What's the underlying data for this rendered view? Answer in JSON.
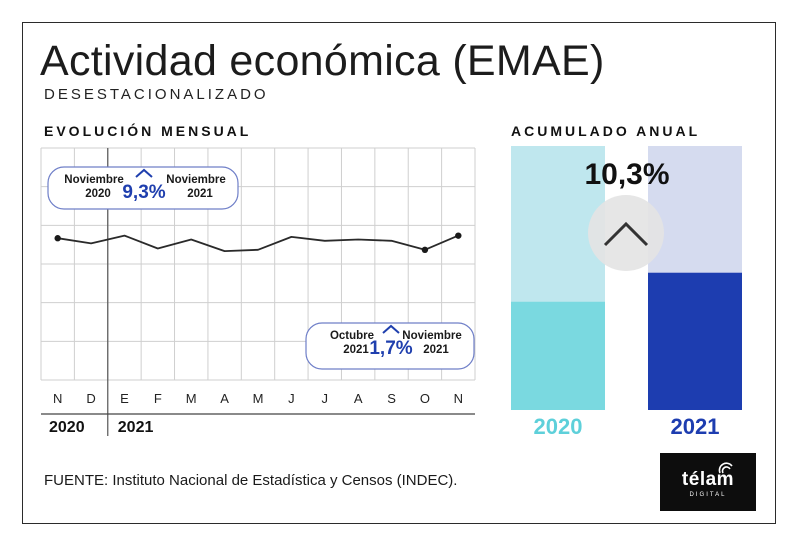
{
  "title": "Actividad económica (EMAE)",
  "subtitle": "DESESTACIONALIZADO",
  "left_section": "EVOLUCIÓN MENSUAL",
  "right_section": "ACUMULADO ANUAL",
  "source": "FUENTE: Instituto Nacional de Estadística y Censos (INDEC).",
  "logo": {
    "word": "télam",
    "sub": "DIGITAL"
  },
  "colors": {
    "line": "#2a2a2a",
    "accent_blue": "#1f3fae",
    "bar_2020_light": "#bfe7ee",
    "bar_2020_dark": "#7ad9e0",
    "bar_2021_light": "#d5dbef",
    "bar_2021_dark": "#1d3db0",
    "label_2020": "#5ed0da",
    "label_2021": "#1d3db0"
  },
  "chart_data": [
    {
      "type": "line",
      "title": "EVOLUCIÓN MENSUAL",
      "categories": [
        "N",
        "D",
        "E",
        "F",
        "M",
        "A",
        "M",
        "J",
        "J",
        "A",
        "S",
        "O",
        "N"
      ],
      "year_labels": [
        "2020",
        "2021"
      ],
      "values": [
        62.0,
        61.2,
        62.4,
        60.4,
        61.8,
        60.0,
        60.2,
        62.2,
        61.6,
        61.8,
        61.6,
        60.2,
        62.4
      ],
      "ylim": [
        40,
        76
      ],
      "grid": true,
      "annotations": [
        {
          "from": "Noviembre",
          "from_year": "2020",
          "value": "9,3%",
          "to": "Noviembre",
          "to_year": "2021"
        },
        {
          "from": "Octubre",
          "from_year": "2021",
          "value": "1,7%",
          "to": "Noviembre",
          "to_year": "2021"
        }
      ]
    },
    {
      "type": "bar",
      "title": "ACUMULADO ANUAL",
      "categories": [
        "2020",
        "2021"
      ],
      "values": [
        41,
        52
      ],
      "ylim": [
        0,
        100
      ],
      "annotation": "10,3%"
    }
  ]
}
